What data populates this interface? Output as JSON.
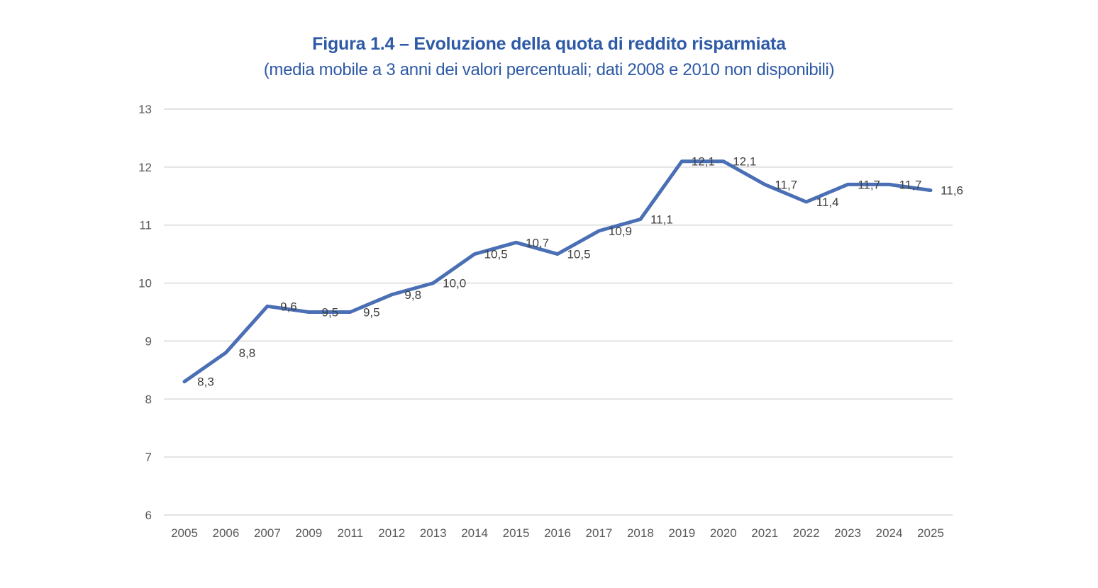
{
  "chart_data": {
    "type": "line",
    "title": "Figura 1.4 – Evoluzione della quota di reddito risparmiata",
    "subtitle": "(media mobile a 3 anni dei valori percentuali; dati 2008 e 2010 non disponibili)",
    "xlabel": "",
    "ylabel": "",
    "categories": [
      "2005",
      "2006",
      "2007",
      "2009",
      "2011",
      "2012",
      "2013",
      "2014",
      "2015",
      "2016",
      "2017",
      "2018",
      "2019",
      "2020",
      "2021",
      "2022",
      "2023",
      "2024",
      "2025"
    ],
    "series": [
      {
        "name": "Quota di reddito risparmiata",
        "color": "#4a6fb5",
        "values": [
          8.3,
          8.8,
          9.6,
          9.5,
          9.5,
          9.8,
          10.0,
          10.5,
          10.7,
          10.5,
          10.9,
          11.1,
          12.1,
          12.1,
          11.7,
          11.4,
          11.7,
          11.7,
          11.6
        ],
        "data_labels": [
          "8,3",
          "8,8",
          "9,6",
          "9,5",
          "9,5",
          "9,8",
          "10,0",
          "10,5",
          "10,7",
          "10,5",
          "10,9",
          "11,1",
          "12,1",
          "12,1",
          "11,7",
          "11,4",
          "11,7",
          "11,7",
          "11,6"
        ]
      }
    ],
    "ylim": [
      6,
      13
    ],
    "yticks": [
      "6",
      "7",
      "8",
      "9",
      "10",
      "11",
      "12",
      "13"
    ],
    "grid": true,
    "legend": "none"
  }
}
